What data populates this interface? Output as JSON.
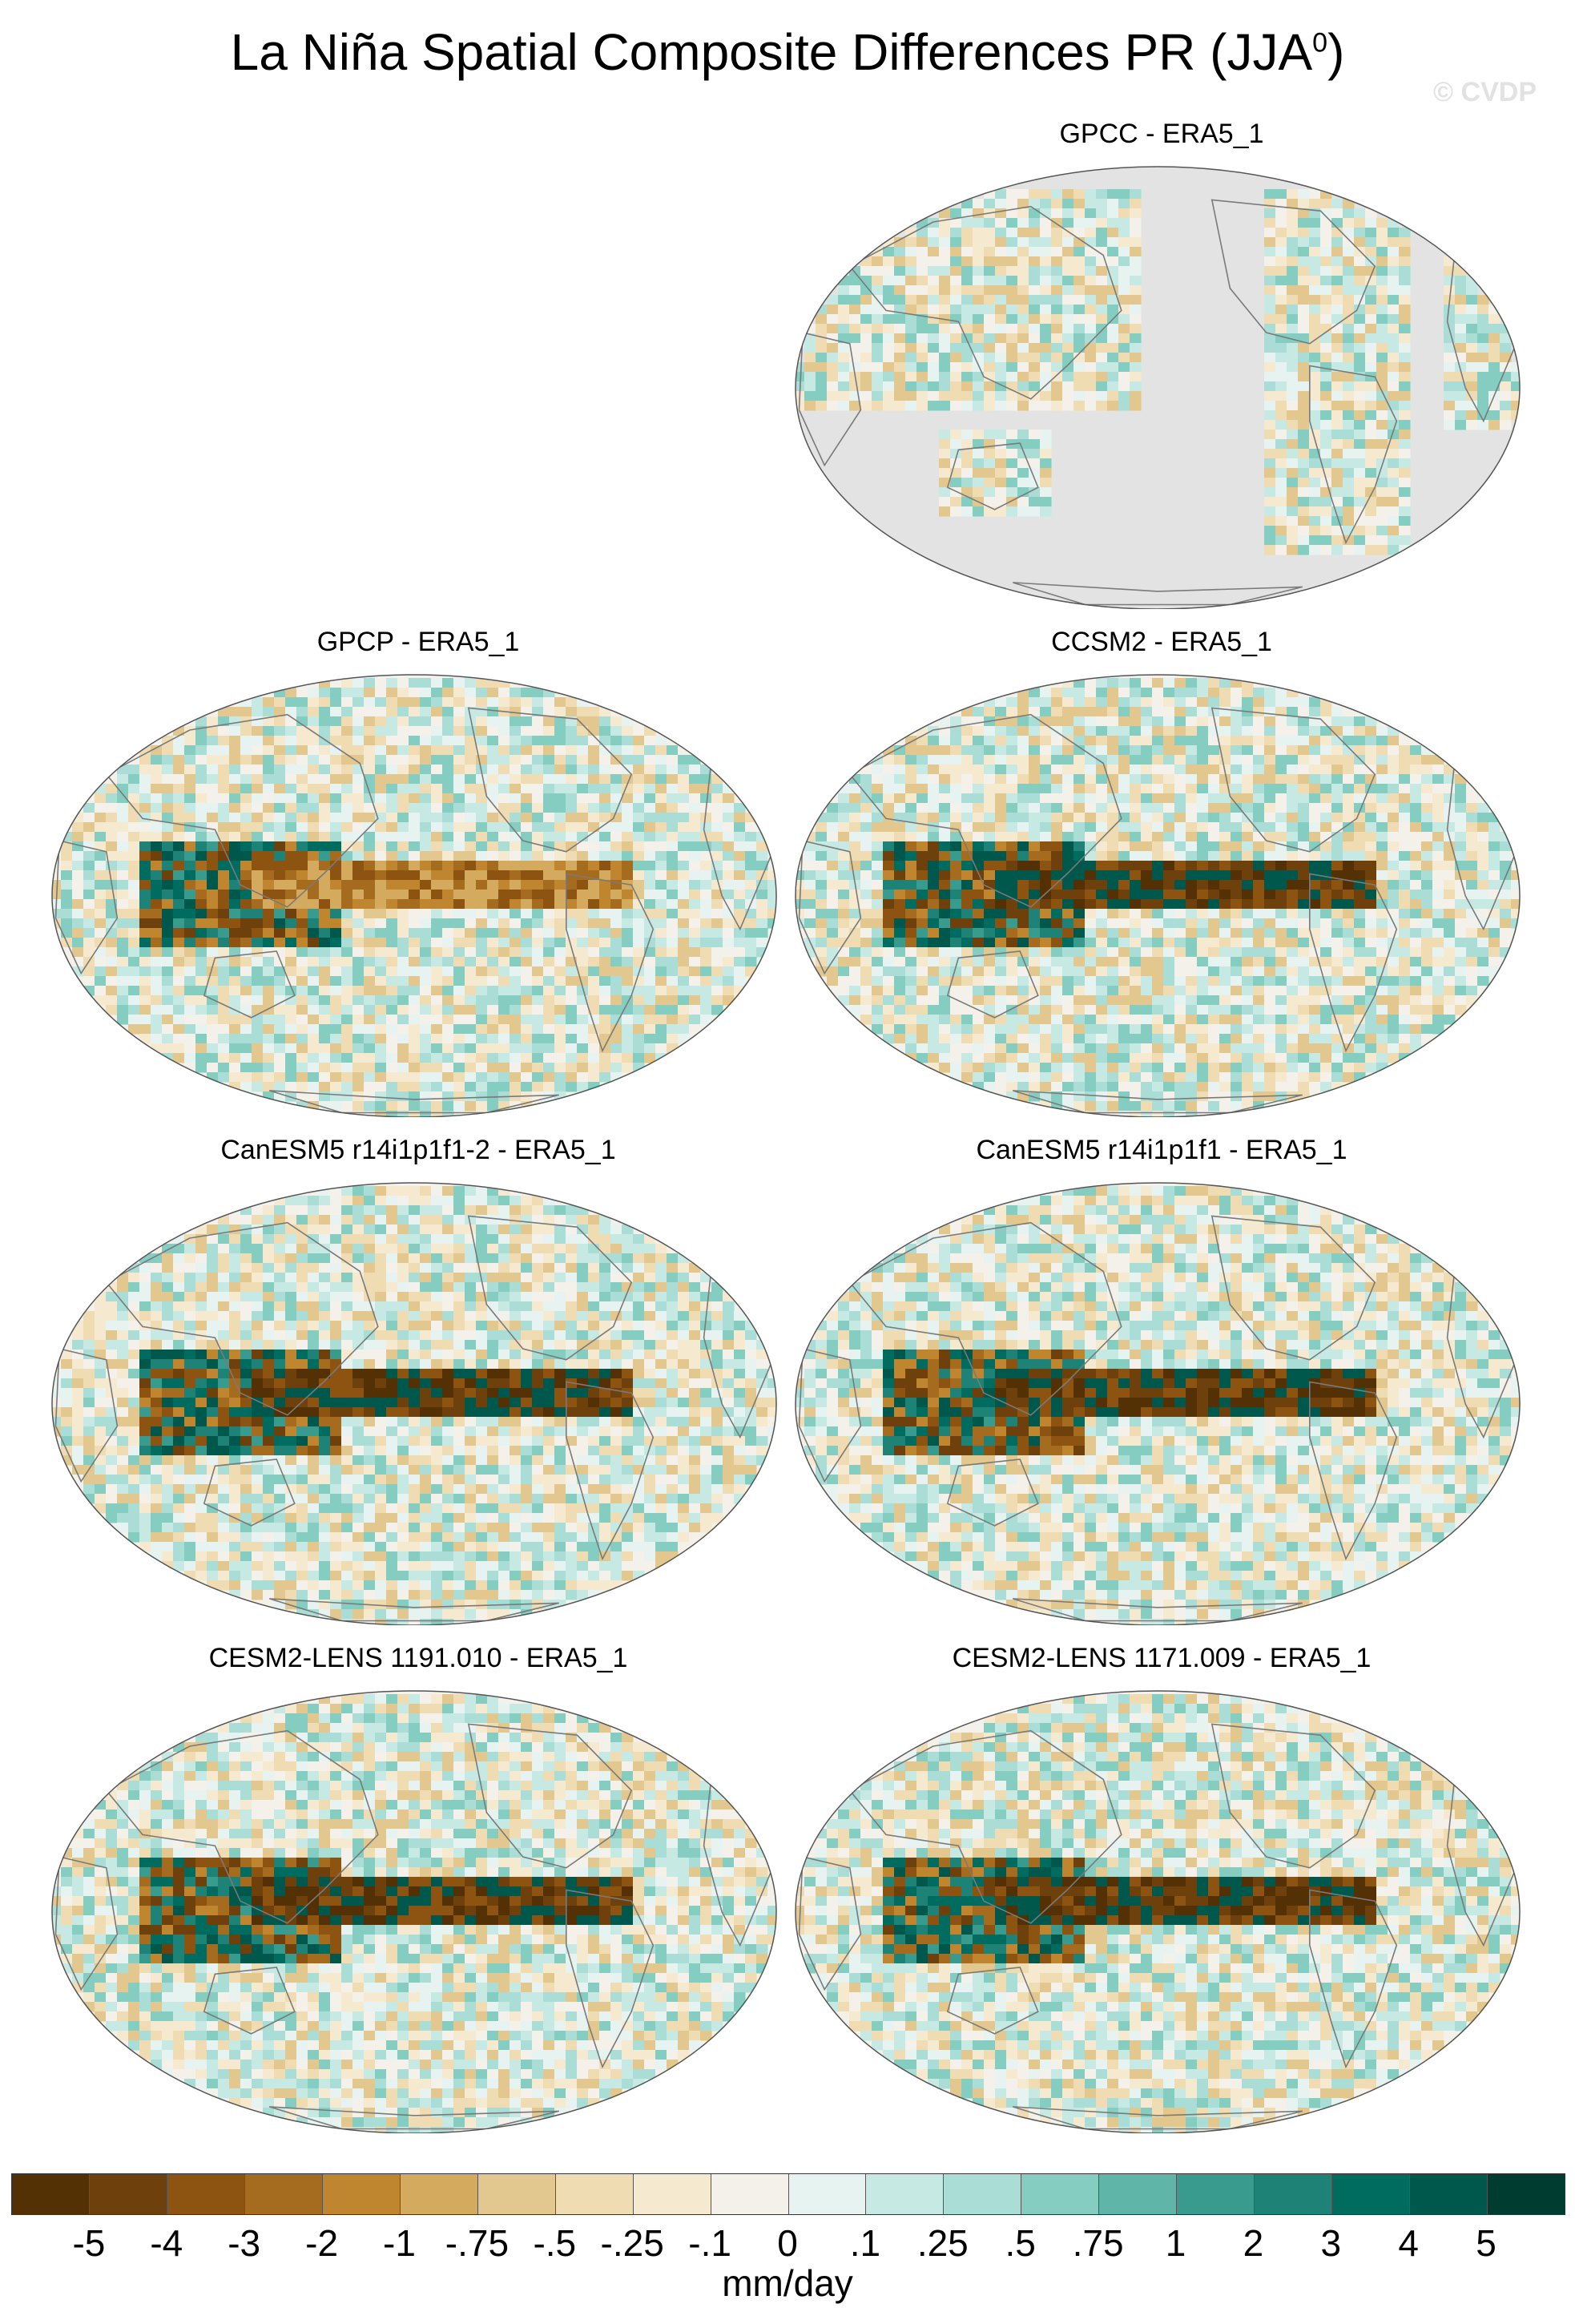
{
  "title": "La Niña Spatial Composite Differences PR (JJA",
  "title_superscript": "0",
  "title_close": ")",
  "watermark": "© CVDP",
  "panels": [
    {
      "label": "GPCC - ERA5_1",
      "land_only": true
    },
    {
      "label": "GPCP - ERA5_1",
      "land_only": false
    },
    {
      "label": "CCSM2 - ERA5_1",
      "land_only": false
    },
    {
      "label": "CanESM5 r14i1p1f1-2 - ERA5_1",
      "land_only": false
    },
    {
      "label": "CanESM5 r14i1p1f1 - ERA5_1",
      "land_only": false
    },
    {
      "label": "CESM2-LENS 1191.010 - ERA5_1",
      "land_only": false
    },
    {
      "label": "CESM2-LENS 1171.009 - ERA5_1",
      "land_only": false
    }
  ],
  "colorbar": {
    "units": "mm/day",
    "colors": [
      "#543005",
      "#6e400c",
      "#8c5410",
      "#a56b1f",
      "#bf862f",
      "#d3aa5e",
      "#e2c88e",
      "#efdcb3",
      "#f5ead0",
      "#f4f1ea",
      "#e6f3f1",
      "#c7e9e4",
      "#a9ddd5",
      "#85cdc0",
      "#5fb6a8",
      "#399b8e",
      "#1f8276",
      "#006b5f",
      "#00574c",
      "#003c30"
    ],
    "ticks": [
      "-5",
      "-4",
      "-3",
      "-2",
      "-1",
      "-.75",
      "-.5",
      "-.25",
      "-.1",
      "0",
      ".1",
      ".25",
      ".5",
      ".75",
      "1",
      "2",
      "3",
      "4",
      "5"
    ]
  }
}
